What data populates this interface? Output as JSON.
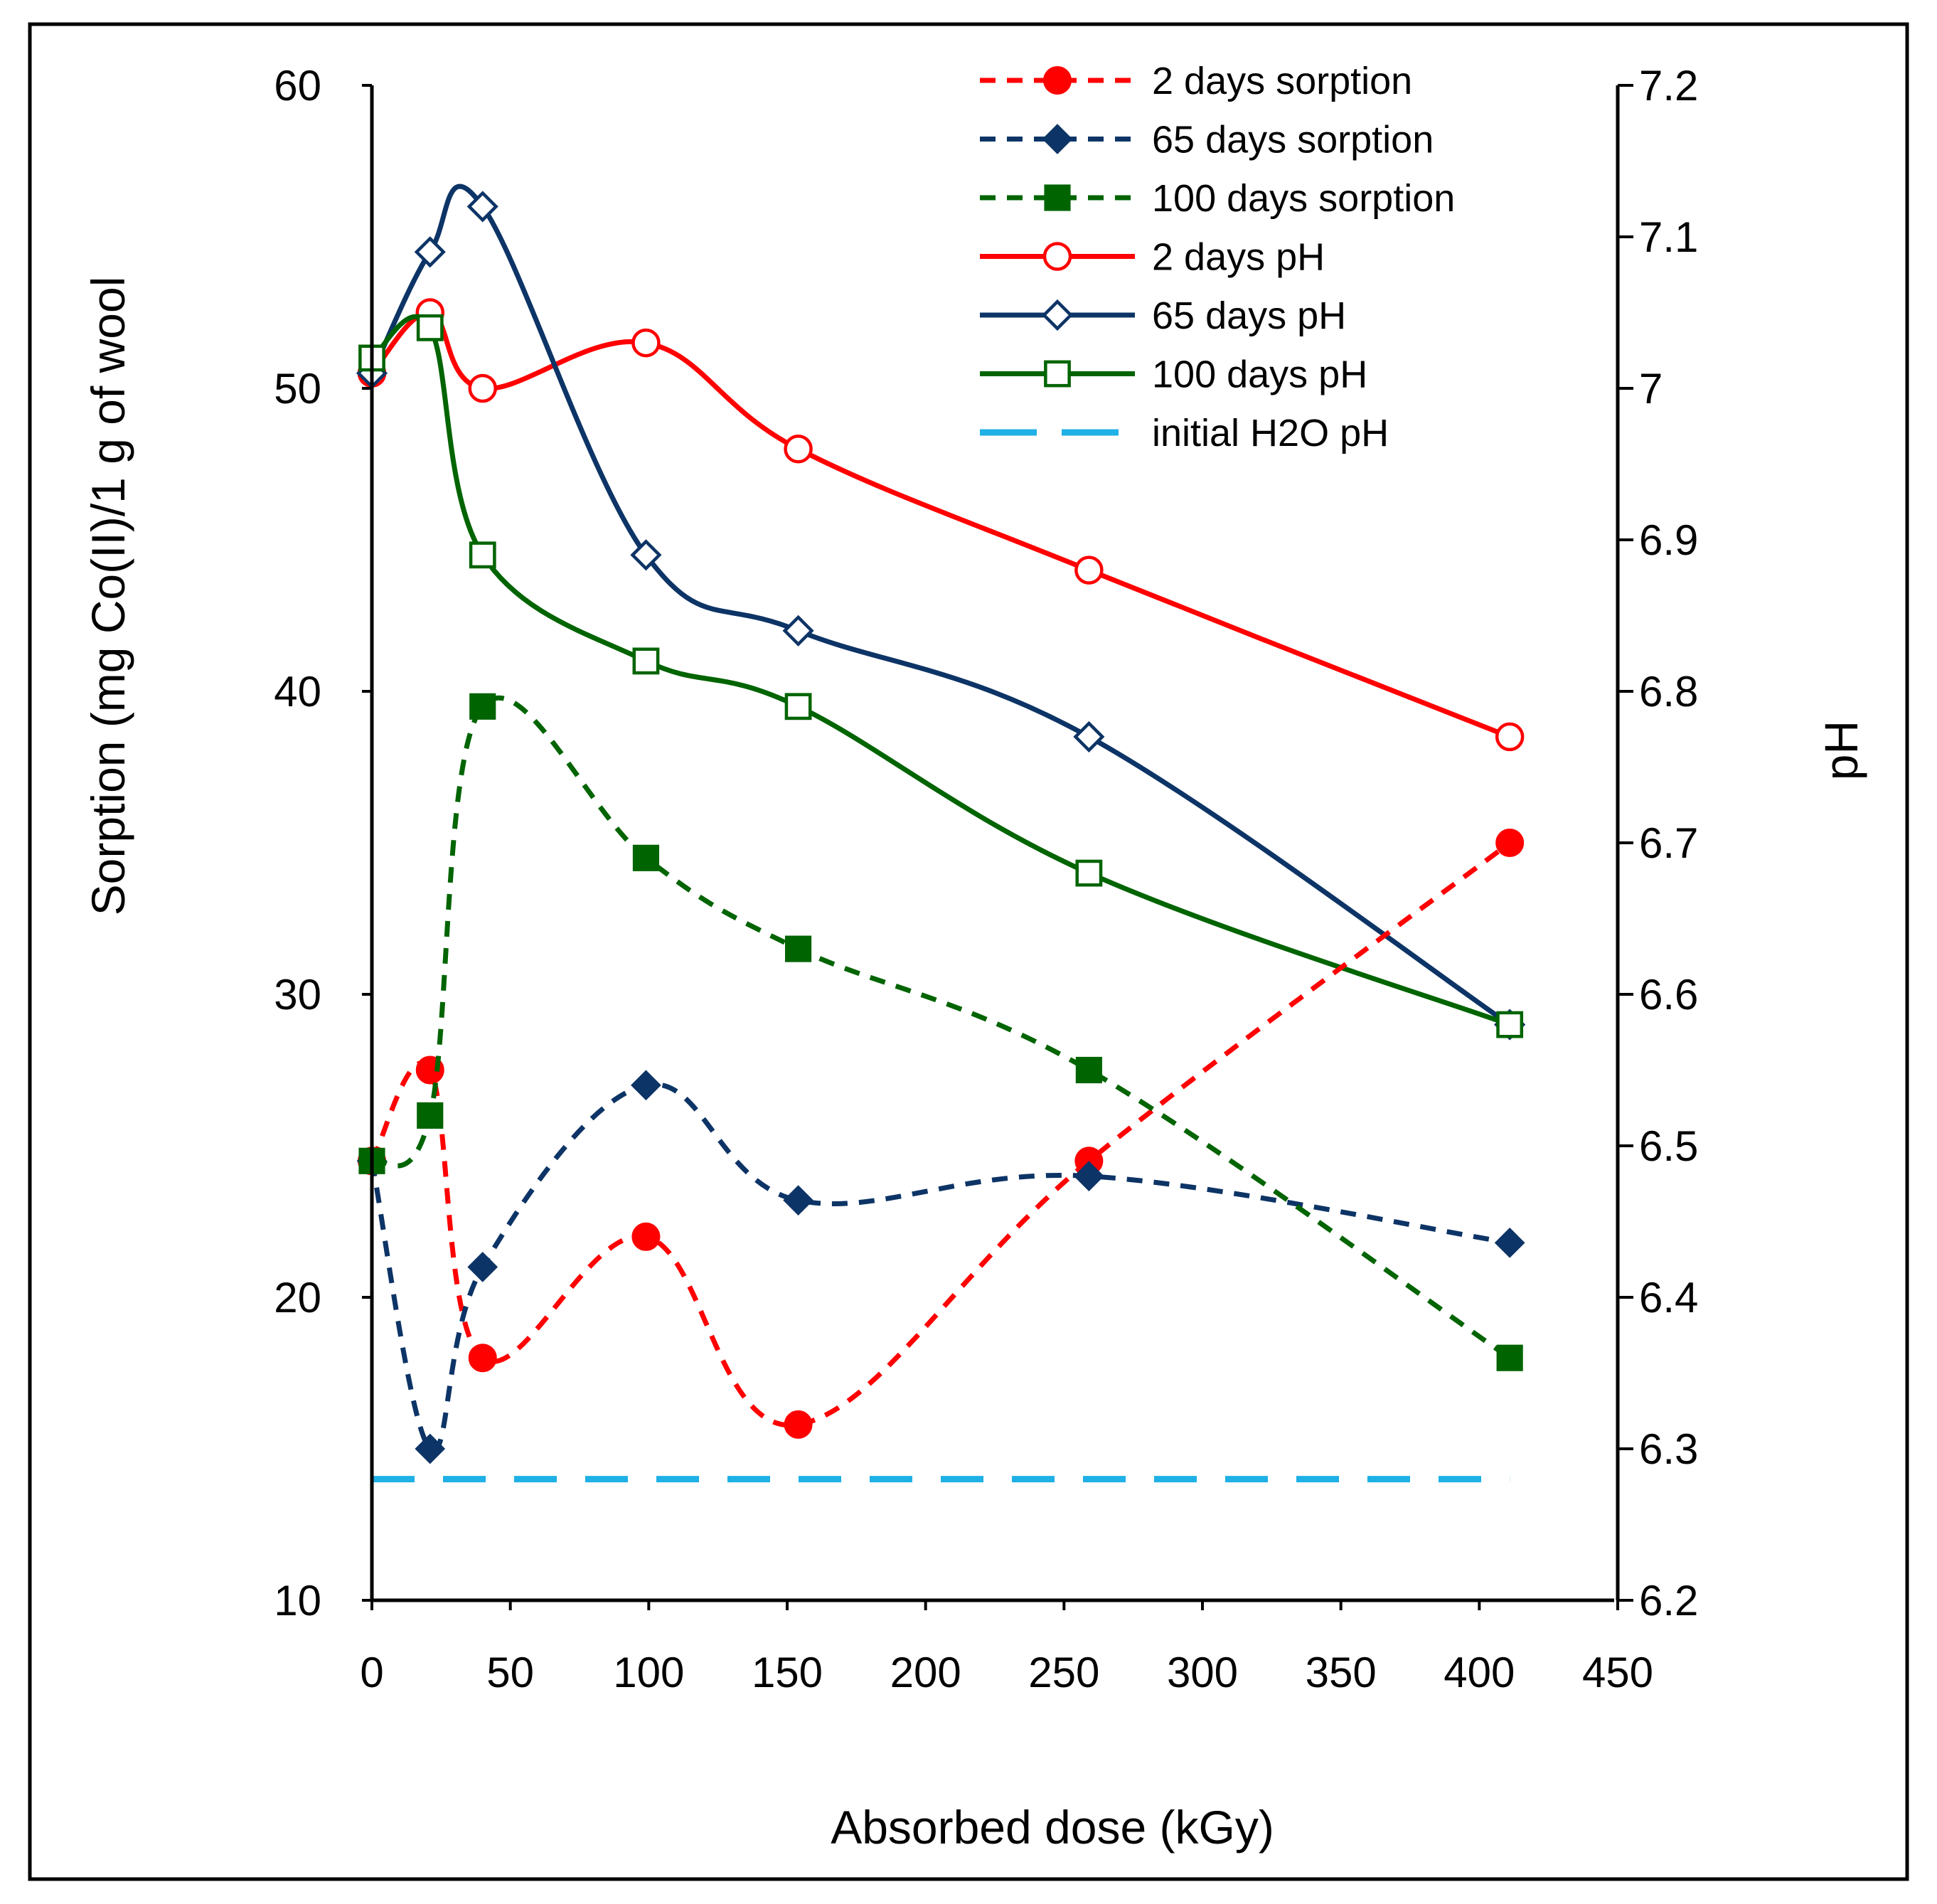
{
  "chart_data": {
    "type": "line",
    "title": "",
    "xlabel": "Absorbed dose (kGy)",
    "ylabel_left": "Sorption (mg Co(II)/1 g of wool",
    "ylabel_right": "pH",
    "xlim": [
      0,
      450
    ],
    "ylim_left": [
      10,
      60
    ],
    "ylim_right": [
      6.2,
      7.2
    ],
    "x_ticks": [
      "0",
      "50",
      "100",
      "150",
      "200",
      "250",
      "300",
      "350",
      "400",
      "450"
    ],
    "y_left_ticks": [
      "10",
      "20",
      "30",
      "40",
      "50",
      "60"
    ],
    "y_right_ticks": [
      "6.2",
      "6.3",
      "6.4",
      "6.5",
      "6.6",
      "6.7",
      "6.8",
      "6.9",
      "7",
      "7.1",
      "7.2"
    ],
    "grid": false,
    "legend_position": "top-right",
    "series": [
      {
        "name": "2 days sorption",
        "axis": "left",
        "color": "#ff0000",
        "dash": "dashed",
        "marker": "circle",
        "filled": true,
        "x": [
          0,
          21,
          40,
          99,
          154,
          259,
          411
        ],
        "y": [
          24.5,
          27.5,
          18.0,
          22.0,
          15.8,
          24.5,
          35.0
        ]
      },
      {
        "name": "65 days sorption",
        "axis": "left",
        "color": "#0d3466",
        "dash": "dashed",
        "marker": "diamond",
        "filled": true,
        "x": [
          0,
          21,
          40,
          99,
          154,
          259,
          411
        ],
        "y": [
          24.5,
          15.0,
          21.0,
          27.0,
          23.2,
          24.0,
          21.8
        ]
      },
      {
        "name": "100 days sorption",
        "axis": "left",
        "color": "#006400",
        "dash": "dashed",
        "marker": "square",
        "filled": true,
        "x": [
          0,
          21,
          40,
          99,
          154,
          259,
          411
        ],
        "y": [
          24.5,
          26.0,
          39.5,
          34.5,
          31.5,
          27.5,
          18.0
        ]
      },
      {
        "name": "2 days pH",
        "axis": "right",
        "color": "#ff0000",
        "dash": "solid",
        "marker": "circle",
        "filled": false,
        "x": [
          0,
          21,
          40,
          99,
          154,
          259,
          411
        ],
        "y": [
          7.01,
          7.05,
          7.0,
          7.03,
          6.96,
          6.88,
          6.77
        ]
      },
      {
        "name": "65 days pH",
        "axis": "right",
        "color": "#0d3466",
        "dash": "solid",
        "marker": "diamond",
        "filled": false,
        "x": [
          0,
          21,
          40,
          99,
          154,
          259,
          411
        ],
        "y": [
          7.01,
          7.09,
          7.12,
          6.89,
          6.84,
          6.77,
          6.58
        ]
      },
      {
        "name": "100 days pH",
        "axis": "right",
        "color": "#006400",
        "dash": "solid",
        "marker": "square",
        "filled": false,
        "x": [
          0,
          21,
          40,
          99,
          154,
          259,
          411
        ],
        "y": [
          7.02,
          7.04,
          6.89,
          6.82,
          6.79,
          6.68,
          6.58
        ]
      },
      {
        "name": "initial H2O pH",
        "axis": "right",
        "color": "#1fb0e6",
        "dash": "longdash",
        "marker": "none",
        "filled": false,
        "x": [
          0,
          411
        ],
        "y": [
          6.28,
          6.28
        ]
      }
    ]
  }
}
